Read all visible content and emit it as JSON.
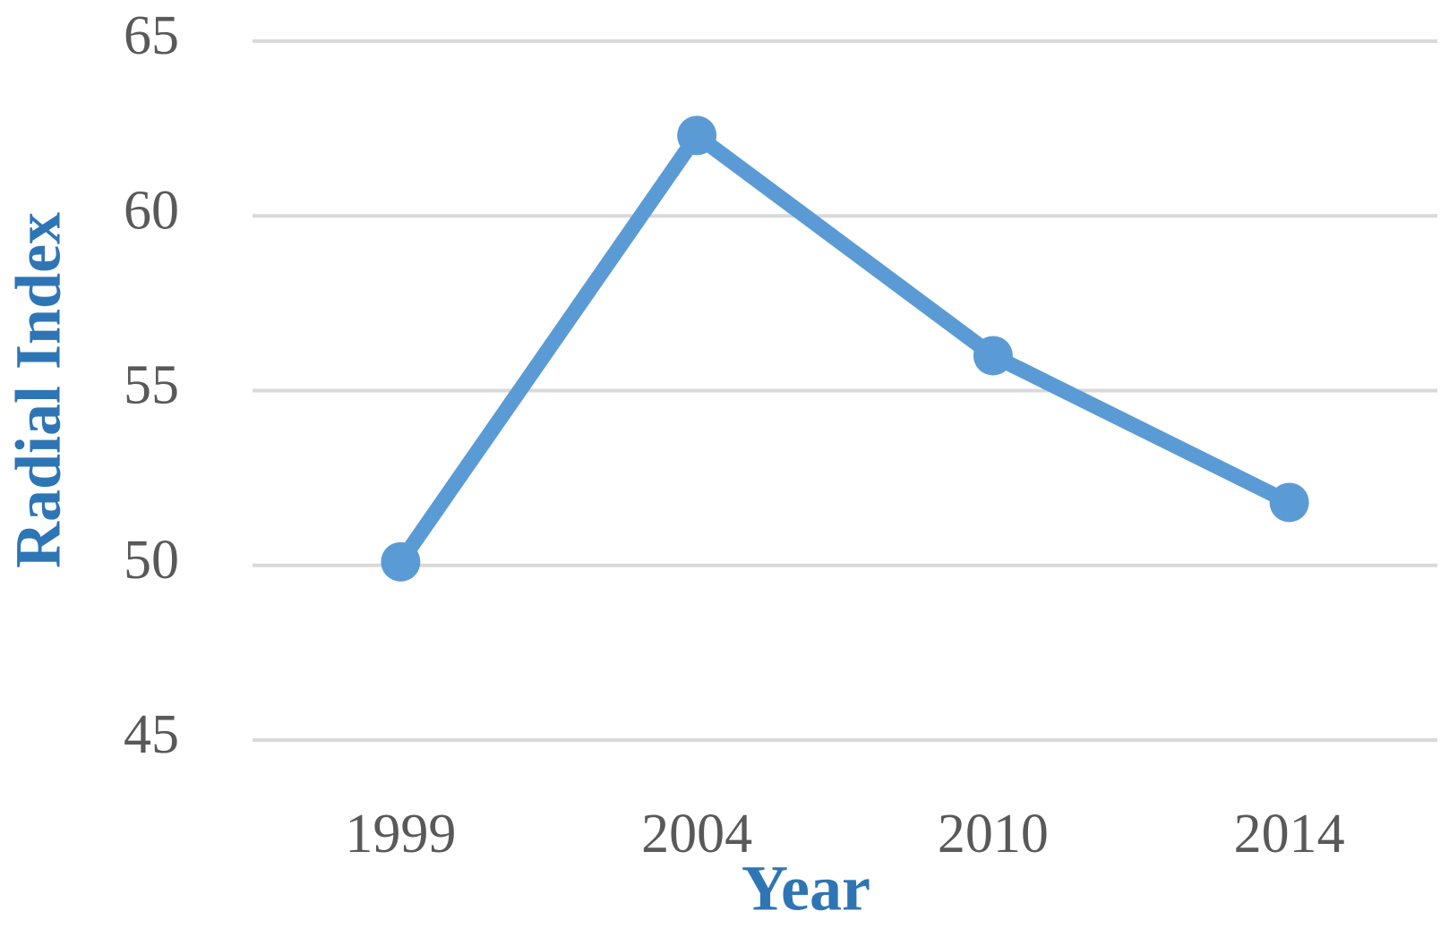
{
  "chart_data": {
    "type": "line",
    "x_label": "Year",
    "y_label": "Radial Index",
    "categories": [
      "1999",
      "2004",
      "2010",
      "2014"
    ],
    "series": [
      {
        "name": "Radial Index",
        "color": "#5b9bd5",
        "values": [
          50.1,
          62.3,
          56.0,
          51.8
        ]
      }
    ],
    "ylim": [
      45,
      65
    ],
    "yticks": [
      45,
      50,
      55,
      60,
      65
    ],
    "grid": true
  }
}
